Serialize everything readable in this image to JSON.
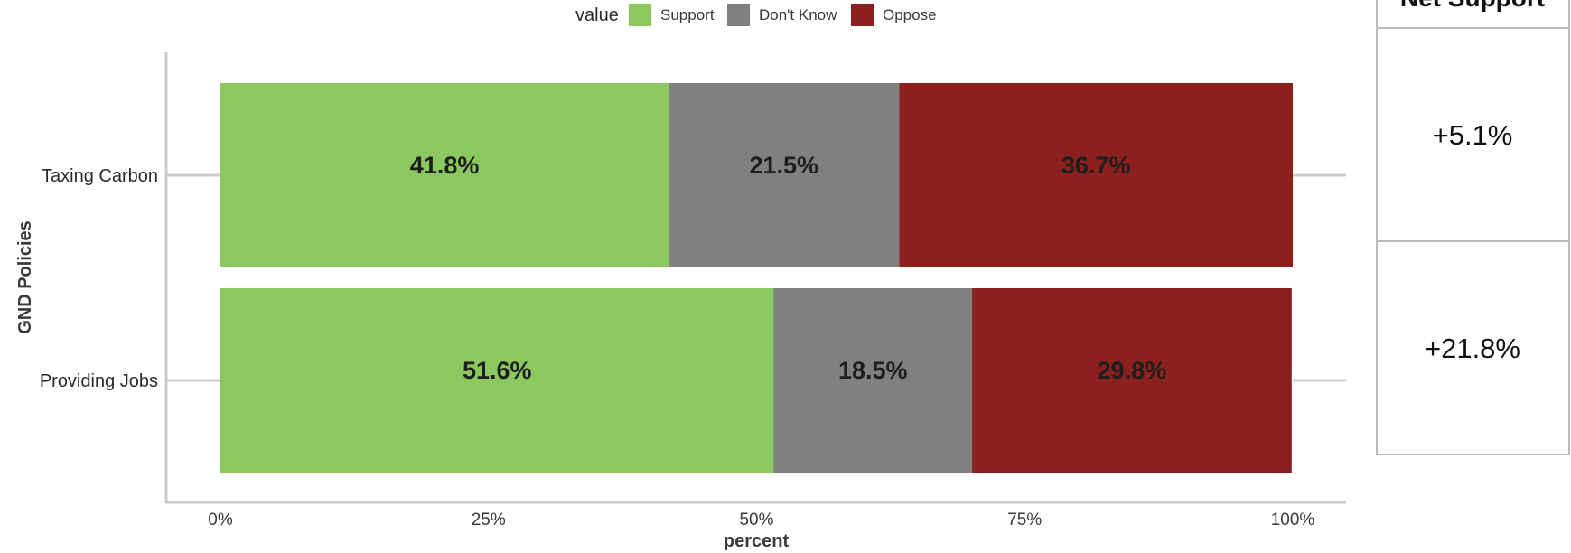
{
  "chart_data": {
    "type": "bar",
    "orientation": "horizontal",
    "stacked": true,
    "title": "",
    "xlabel": "percent",
    "ylabel": "GND Policies",
    "xlim": [
      0,
      100
    ],
    "x_ticks": [
      "0%",
      "25%",
      "50%",
      "75%",
      "100%"
    ],
    "categories": [
      "Taxing Carbon",
      "Providing Jobs"
    ],
    "legend": {
      "title": "value",
      "position": "top",
      "entries": [
        "Support",
        "Don't Know",
        "Oppose"
      ]
    },
    "series": [
      {
        "name": "Support",
        "color": "#8cc860",
        "values": [
          41.8,
          51.6
        ],
        "labels": [
          "41.8%",
          "51.6%"
        ]
      },
      {
        "name": "Don't Know",
        "color": "#808080",
        "values": [
          21.5,
          18.5
        ],
        "labels": [
          "21.5%",
          "18.5%"
        ]
      },
      {
        "name": "Oppose",
        "color": "#8b201e",
        "values": [
          36.7,
          29.8
        ],
        "labels": [
          "36.7%",
          "29.8%"
        ]
      }
    ],
    "grid": false
  },
  "net_support_table": {
    "header": "Net Support",
    "values": [
      "+5.1%",
      "+21.8%"
    ]
  }
}
